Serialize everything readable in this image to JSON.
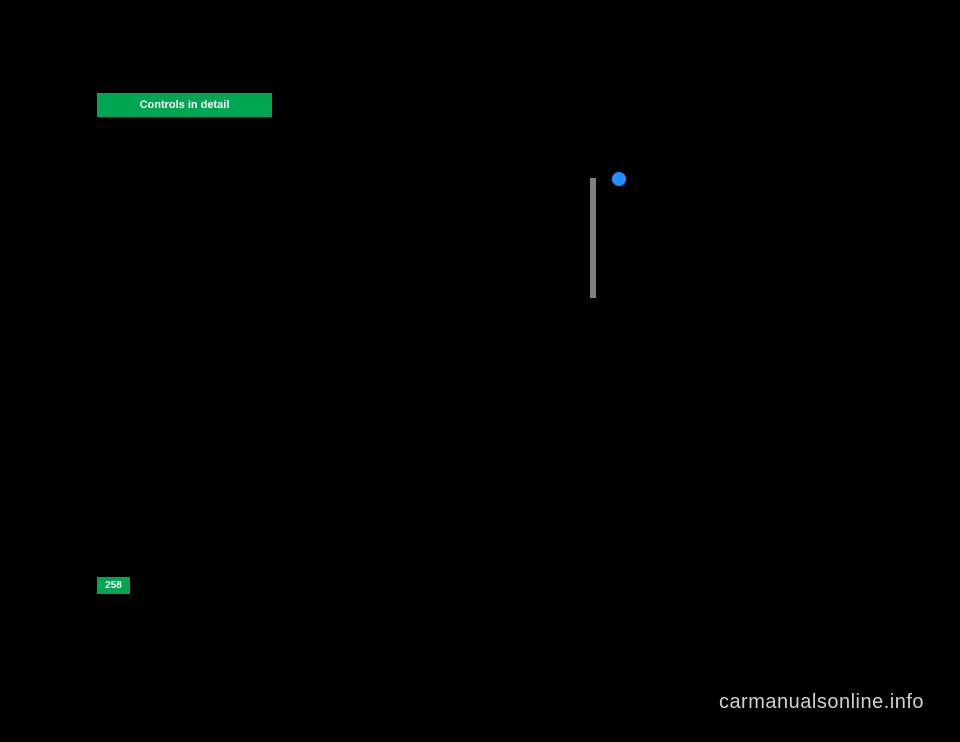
{
  "header": {
    "title": "Controls in detail"
  },
  "page": {
    "number": "258"
  },
  "watermark": {
    "text": "carmanualsonline.info"
  },
  "colors": {
    "background": "#000000",
    "accent_green": "#00a651",
    "bullet_blue": "#1e90ff",
    "bar_gray": "#808080",
    "watermark_gray": "#d0d0d0",
    "text_white": "#ffffff"
  }
}
